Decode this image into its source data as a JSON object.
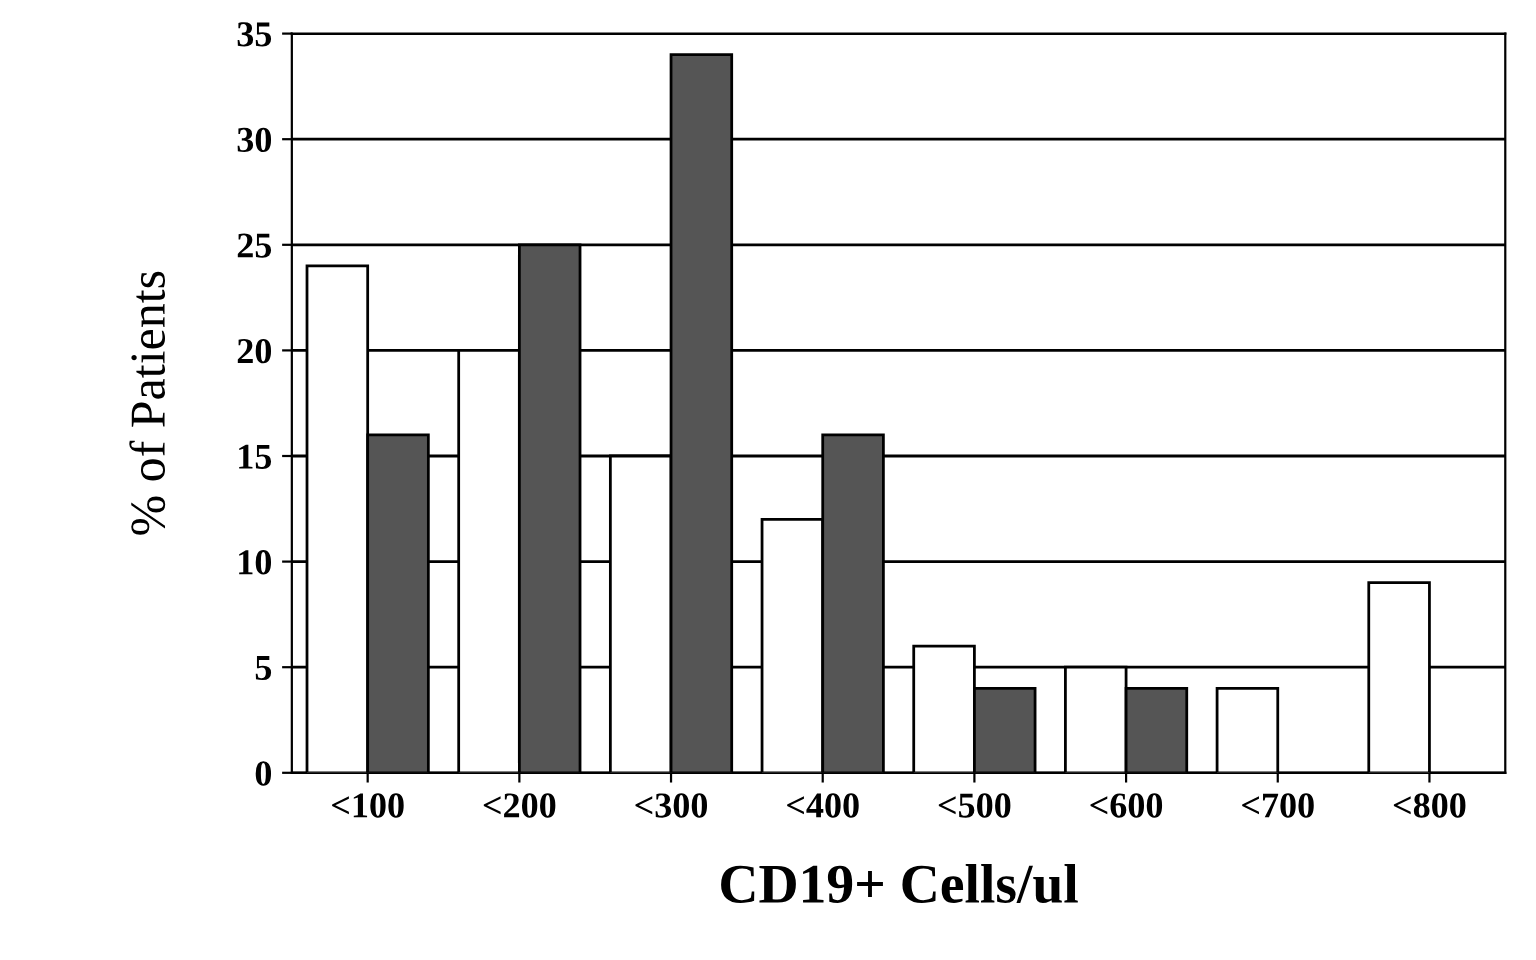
{
  "chart_data": {
    "type": "bar",
    "xlabel": "CD19+ Cells/ul",
    "ylabel": "% of Patients",
    "categories": [
      "<100",
      "<200",
      "<300",
      "<400",
      "<500",
      "<600",
      "<700",
      "<800"
    ],
    "series": [
      {
        "color": "#ffffff",
        "values": [
          24,
          20,
          15,
          12,
          6,
          5,
          4,
          9
        ]
      },
      {
        "color": "#555555",
        "values": [
          16,
          25,
          34,
          16,
          4,
          4,
          0,
          0
        ]
      }
    ],
    "ylim": [
      0,
      35
    ],
    "yticks": [
      0,
      5,
      10,
      15,
      20,
      25,
      30,
      35
    ],
    "grid": "y"
  }
}
